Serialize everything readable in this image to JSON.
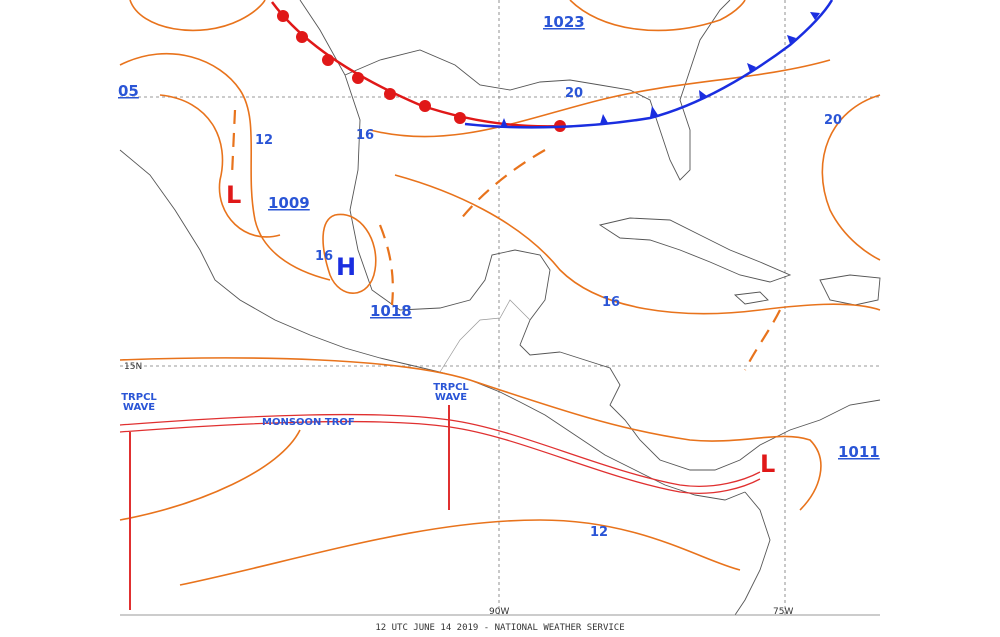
{
  "pressure_labels": [
    "05",
    "1023",
    "1009",
    "1018",
    "1011"
  ],
  "isobar_labels": [
    "12",
    "16",
    "16",
    "20",
    "20",
    "16",
    "12"
  ],
  "highs": [
    "H"
  ],
  "lows": [
    "L",
    "L"
  ],
  "tropical_waves": [
    {
      "line1": "TRPCL",
      "line2": "WAVE"
    },
    {
      "line1": "TRPCL",
      "line2": "WAVE"
    }
  ],
  "monsoon_trough": "MONSOON TROF",
  "grid_labels": {
    "lat": "15N",
    "lon": [
      "90W",
      "75W"
    ]
  },
  "footer": "12 UTC JUNE 14 2019 - NATIONAL WEATHER SERVICE"
}
